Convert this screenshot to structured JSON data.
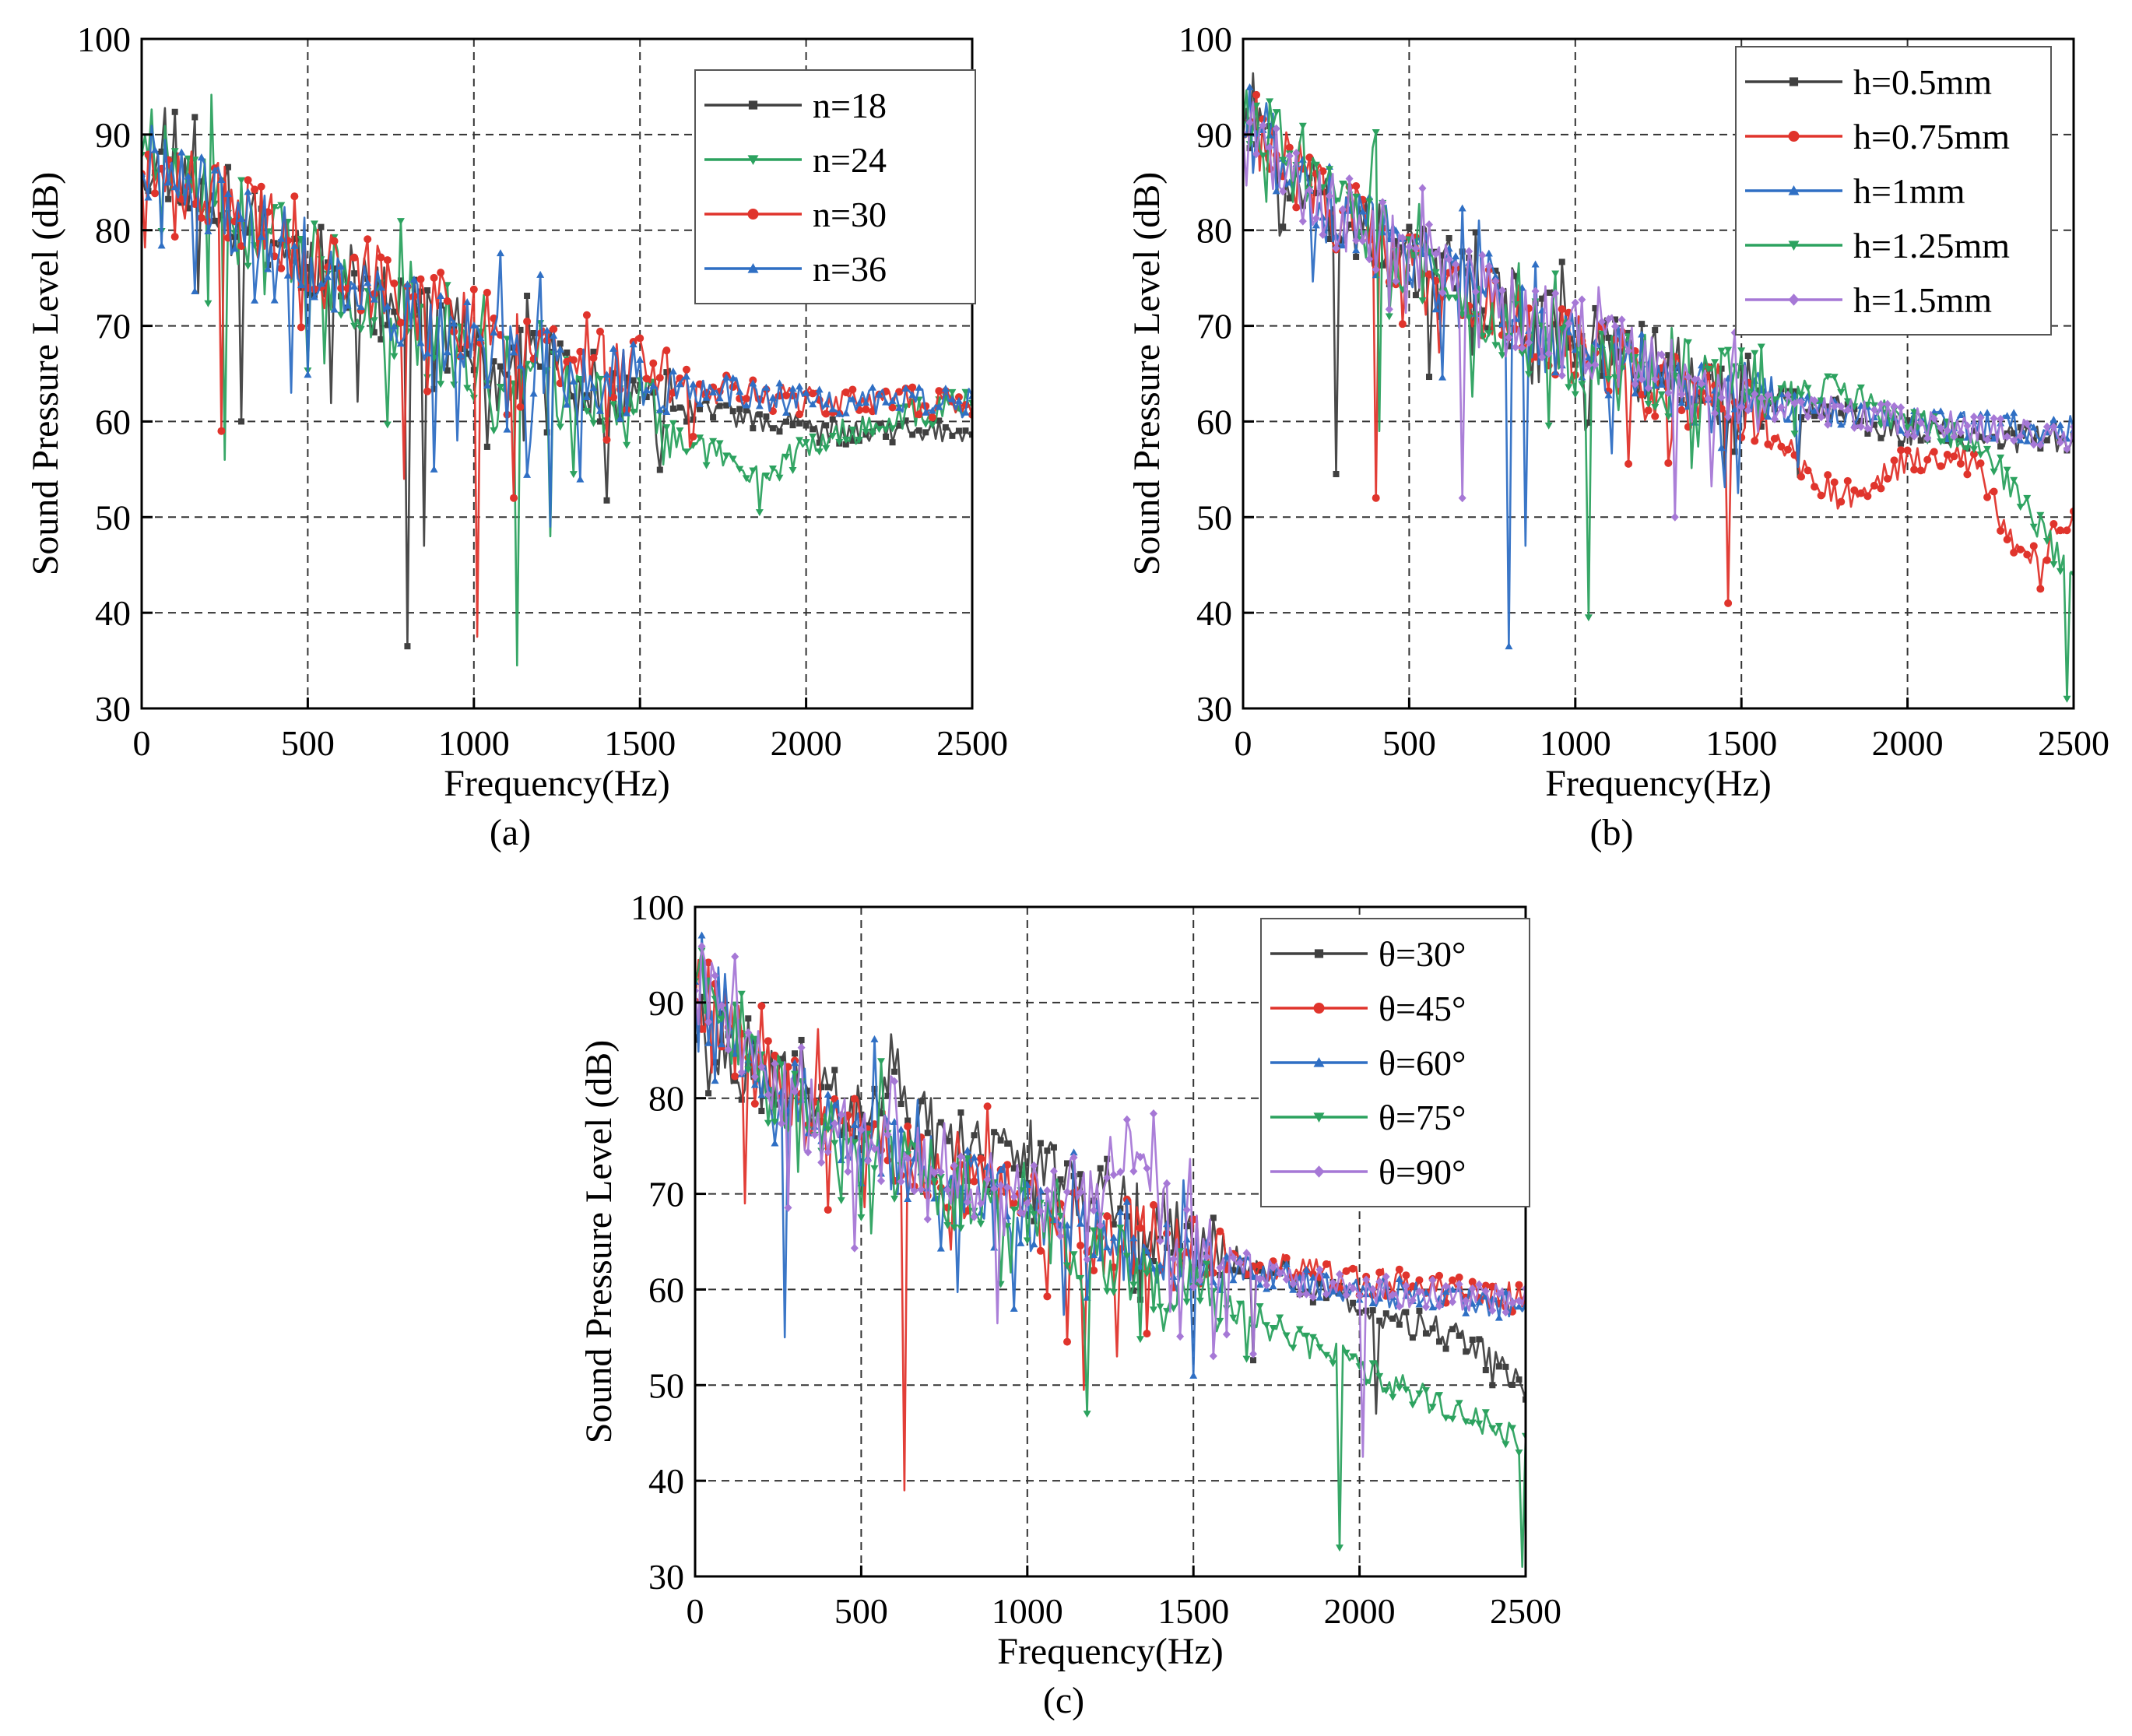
{
  "figure": {
    "panels": [
      "(a)",
      "(b)",
      "(c)"
    ]
  },
  "chart_data": [
    {
      "id": "a",
      "type": "line",
      "panel_label": "(a)",
      "xlabel": "Frequency(Hz)",
      "ylabel": "Sound Pressure Level (dB)",
      "xlim": [
        0,
        2500
      ],
      "ylim": [
        30,
        100
      ],
      "xticks": [
        0,
        500,
        1000,
        1500,
        2000,
        2500
      ],
      "xtick_labels": [
        "0",
        "500",
        "1000",
        "1500",
        "2000",
        "2500"
      ],
      "yticks": [
        30,
        40,
        50,
        60,
        70,
        80,
        90,
        100
      ],
      "ytick_labels": [
        "30",
        "40",
        "50",
        "60",
        "70",
        "80",
        "90",
        "100"
      ],
      "grid": true,
      "legend_position": "top-right",
      "series": [
        {
          "name": "n=18",
          "color": "#404040",
          "marker": "square",
          "seed": 11,
          "dips": [
            [
              300,
              60
            ],
            [
              800,
              36.5
            ],
            [
              850,
              47
            ],
            [
              1150,
              58
            ]
          ],
          "envelope": [
            [
              0,
              88
            ],
            [
              200,
              84
            ],
            [
              500,
              77
            ],
            [
              800,
              71
            ],
            [
              1000,
              68
            ],
            [
              1200,
              65
            ],
            [
              1500,
              62
            ],
            [
              1800,
              60
            ],
            [
              2000,
              59
            ],
            [
              2500,
              59
            ]
          ]
        },
        {
          "name": "n=24",
          "color": "#2ca25f",
          "marker": "triangle-down",
          "seed": 23,
          "dips": [
            [
              250,
              56
            ],
            [
              1130,
              34.5
            ],
            [
              1230,
              48
            ],
            [
              1860,
              50.5
            ]
          ],
          "envelope": [
            [
              0,
              90
            ],
            [
              200,
              85
            ],
            [
              500,
              77
            ],
            [
              800,
              70
            ],
            [
              1000,
              66
            ],
            [
              1200,
              64
            ],
            [
              1500,
              61
            ],
            [
              1800,
              55
            ],
            [
              1900,
              54
            ],
            [
              2000,
              58
            ],
            [
              2500,
              62
            ]
          ]
        },
        {
          "name": "n=30",
          "color": "#e0342c",
          "marker": "circle",
          "seed": 37,
          "dips": [
            [
              240,
              59
            ],
            [
              790,
              54
            ],
            [
              1010,
              37.5
            ],
            [
              1120,
              52
            ]
          ],
          "envelope": [
            [
              0,
              88
            ],
            [
              200,
              84
            ],
            [
              500,
              78
            ],
            [
              800,
              73
            ],
            [
              1000,
              70
            ],
            [
              1200,
              67
            ],
            [
              1500,
              65
            ],
            [
              1800,
              63
            ],
            [
              2000,
              62
            ],
            [
              2500,
              62
            ]
          ]
        },
        {
          "name": "n=36",
          "color": "#2f6fc4",
          "marker": "triangle-up",
          "seed": 41,
          "dips": [
            [
              450,
              63
            ],
            [
              950,
              58
            ],
            [
              1230,
              49
            ],
            [
              880,
              55
            ]
          ],
          "envelope": [
            [
              0,
              88
            ],
            [
              200,
              83
            ],
            [
              500,
              77
            ],
            [
              800,
              71
            ],
            [
              1000,
              68
            ],
            [
              1200,
              66
            ],
            [
              1500,
              64
            ],
            [
              1800,
              63
            ],
            [
              2000,
              62
            ],
            [
              2500,
              62
            ]
          ]
        }
      ]
    },
    {
      "id": "b",
      "type": "line",
      "panel_label": "(b)",
      "xlabel": "Frequency(Hz)",
      "ylabel": "Sound Pressure Level (dB)",
      "xlim": [
        0,
        2500
      ],
      "ylim": [
        30,
        100
      ],
      "xticks": [
        0,
        500,
        1000,
        1500,
        2000,
        2500
      ],
      "xtick_labels": [
        "0",
        "500",
        "1000",
        "1500",
        "2000",
        "2500"
      ],
      "yticks": [
        30,
        40,
        50,
        60,
        70,
        80,
        90,
        100
      ],
      "ytick_labels": [
        "30",
        "40",
        "50",
        "60",
        "70",
        "80",
        "90",
        "100"
      ],
      "grid": true,
      "legend_position": "top-right",
      "series": [
        {
          "name": "h=0.5mm",
          "color": "#404040",
          "marker": "square",
          "seed": 53,
          "dips": [
            [
              280,
              54.5
            ],
            [
              1450,
              55
            ]
          ],
          "envelope": [
            [
              0,
              92
            ],
            [
              200,
              84
            ],
            [
              500,
              77
            ],
            [
              800,
              72
            ],
            [
              1000,
              69
            ],
            [
              1200,
              66
            ],
            [
              1500,
              63
            ],
            [
              1800,
              61
            ],
            [
              2000,
              59
            ],
            [
              2500,
              58
            ]
          ]
        },
        {
          "name": "h=0.75mm",
          "color": "#e0342c",
          "marker": "circle",
          "seed": 61,
          "dips": [
            [
              400,
              52
            ],
            [
              1460,
              41
            ],
            [
              2400,
              42.5
            ]
          ],
          "envelope": [
            [
              0,
              92
            ],
            [
              200,
              84
            ],
            [
              500,
              76
            ],
            [
              800,
              71
            ],
            [
              1000,
              68
            ],
            [
              1200,
              65
            ],
            [
              1500,
              61
            ],
            [
              1700,
              55
            ],
            [
              1800,
              52
            ],
            [
              2000,
              56
            ],
            [
              2200,
              56
            ],
            [
              2300,
              48
            ],
            [
              2400,
              46
            ],
            [
              2500,
              51
            ]
          ]
        },
        {
          "name": "h=1mm",
          "color": "#2f6fc4",
          "marker": "triangle-up",
          "seed": 71,
          "dips": [
            [
              800,
              36.5
            ],
            [
              850,
              47
            ]
          ],
          "envelope": [
            [
              0,
              92
            ],
            [
              200,
              84
            ],
            [
              500,
              77
            ],
            [
              800,
              71
            ],
            [
              1000,
              68
            ],
            [
              1200,
              65
            ],
            [
              1500,
              62
            ],
            [
              1800,
              61
            ],
            [
              2000,
              60
            ],
            [
              2500,
              59
            ]
          ]
        },
        {
          "name": "h=1.25mm",
          "color": "#2ca25f",
          "marker": "triangle-down",
          "seed": 83,
          "dips": [
            [
              410,
              59
            ],
            [
              1040,
              39.5
            ],
            [
              2480,
              31
            ]
          ],
          "envelope": [
            [
              0,
              93
            ],
            [
              200,
              85
            ],
            [
              500,
              77
            ],
            [
              800,
              70
            ],
            [
              1000,
              66
            ],
            [
              1200,
              65
            ],
            [
              1500,
              64
            ],
            [
              1800,
              63
            ],
            [
              2000,
              60
            ],
            [
              2200,
              58
            ],
            [
              2300,
              54
            ],
            [
              2400,
              49
            ],
            [
              2500,
              43
            ]
          ]
        },
        {
          "name": "h=1.5mm",
          "color": "#a678d6",
          "marker": "diamond",
          "seed": 97,
          "dips": [
            [
              660,
              52
            ],
            [
              1300,
              50
            ]
          ],
          "envelope": [
            [
              0,
              92
            ],
            [
              200,
              84
            ],
            [
              500,
              77
            ],
            [
              800,
              72
            ],
            [
              1000,
              69
            ],
            [
              1200,
              66
            ],
            [
              1500,
              62
            ],
            [
              1800,
              61
            ],
            [
              2000,
              60
            ],
            [
              2500,
              58
            ]
          ]
        }
      ]
    },
    {
      "id": "c",
      "type": "line",
      "panel_label": "(c)",
      "xlabel": "Frequency(Hz)",
      "ylabel": "Sound Pressure Level (dB)",
      "xlim": [
        0,
        2500
      ],
      "ylim": [
        30,
        100
      ],
      "xticks": [
        0,
        500,
        1000,
        1500,
        2000,
        2500
      ],
      "xtick_labels": [
        "0",
        "500",
        "1000",
        "1500",
        "2000",
        "2500"
      ],
      "yticks": [
        30,
        40,
        50,
        60,
        70,
        80,
        90,
        100
      ],
      "ytick_labels": [
        "30",
        "40",
        "50",
        "60",
        "70",
        "80",
        "90",
        "100"
      ],
      "grid": true,
      "legend_position": "top-right",
      "series": [
        {
          "name": "θ=30°",
          "color": "#404040",
          "marker": "square",
          "seed": 101,
          "dips": [
            [
              2050,
              47
            ],
            [
              2400,
              50
            ]
          ],
          "envelope": [
            [
              0,
              88
            ],
            [
              200,
              82
            ],
            [
              500,
              78
            ],
            [
              580,
              84
            ],
            [
              700,
              76
            ],
            [
              1000,
              73
            ],
            [
              1200,
              70
            ],
            [
              1500,
              65
            ],
            [
              1800,
              61
            ],
            [
              2000,
              58
            ],
            [
              2300,
              55
            ],
            [
              2500,
              50
            ]
          ]
        },
        {
          "name": "θ=45°",
          "color": "#e0342c",
          "marker": "circle",
          "seed": 113,
          "dips": [
            [
              630,
              39
            ],
            [
              1170,
              49.5
            ],
            [
              150,
              69
            ]
          ],
          "envelope": [
            [
              0,
              92
            ],
            [
              200,
              82
            ],
            [
              500,
              76
            ],
            [
              800,
              71
            ],
            [
              1000,
              68
            ],
            [
              1200,
              66
            ],
            [
              1500,
              64
            ],
            [
              1800,
              62
            ],
            [
              2000,
              61
            ],
            [
              2500,
              59
            ]
          ]
        },
        {
          "name": "θ=60°",
          "color": "#2f6fc4",
          "marker": "triangle-up",
          "seed": 127,
          "dips": [
            [
              270,
              55
            ],
            [
              1500,
              51
            ],
            [
              960,
              58
            ]
          ],
          "envelope": [
            [
              0,
              94
            ],
            [
              200,
              83
            ],
            [
              500,
              76
            ],
            [
              800,
              71
            ],
            [
              1000,
              68
            ],
            [
              1200,
              66
            ],
            [
              1500,
              63
            ],
            [
              1800,
              61
            ],
            [
              2000,
              60
            ],
            [
              2500,
              58
            ]
          ]
        },
        {
          "name": "θ=75°",
          "color": "#2ca25f",
          "marker": "triangle-down",
          "seed": 131,
          "dips": [
            [
              1180,
              47
            ],
            [
              1940,
              33
            ],
            [
              2490,
              31
            ]
          ],
          "envelope": [
            [
              0,
              94
            ],
            [
              200,
              82
            ],
            [
              500,
              75
            ],
            [
              800,
              70
            ],
            [
              1000,
              67
            ],
            [
              1200,
              64
            ],
            [
              1500,
              60
            ],
            [
              1800,
              55
            ],
            [
              2000,
              52
            ],
            [
              2300,
              47
            ],
            [
              2500,
              44
            ]
          ]
        },
        {
          "name": "θ=90°",
          "color": "#a678d6",
          "marker": "diamond",
          "seed": 139,
          "dips": [
            [
              1270,
              72
            ],
            [
              2010,
              42.5
            ]
          ],
          "envelope": [
            [
              0,
              93
            ],
            [
              200,
              81
            ],
            [
              500,
              75
            ],
            [
              800,
              71
            ],
            [
              1000,
              69
            ],
            [
              1200,
              70
            ],
            [
              1300,
              74
            ],
            [
              1500,
              64
            ],
            [
              1800,
              61
            ],
            [
              2000,
              60
            ],
            [
              2500,
              59
            ]
          ]
        }
      ]
    }
  ]
}
